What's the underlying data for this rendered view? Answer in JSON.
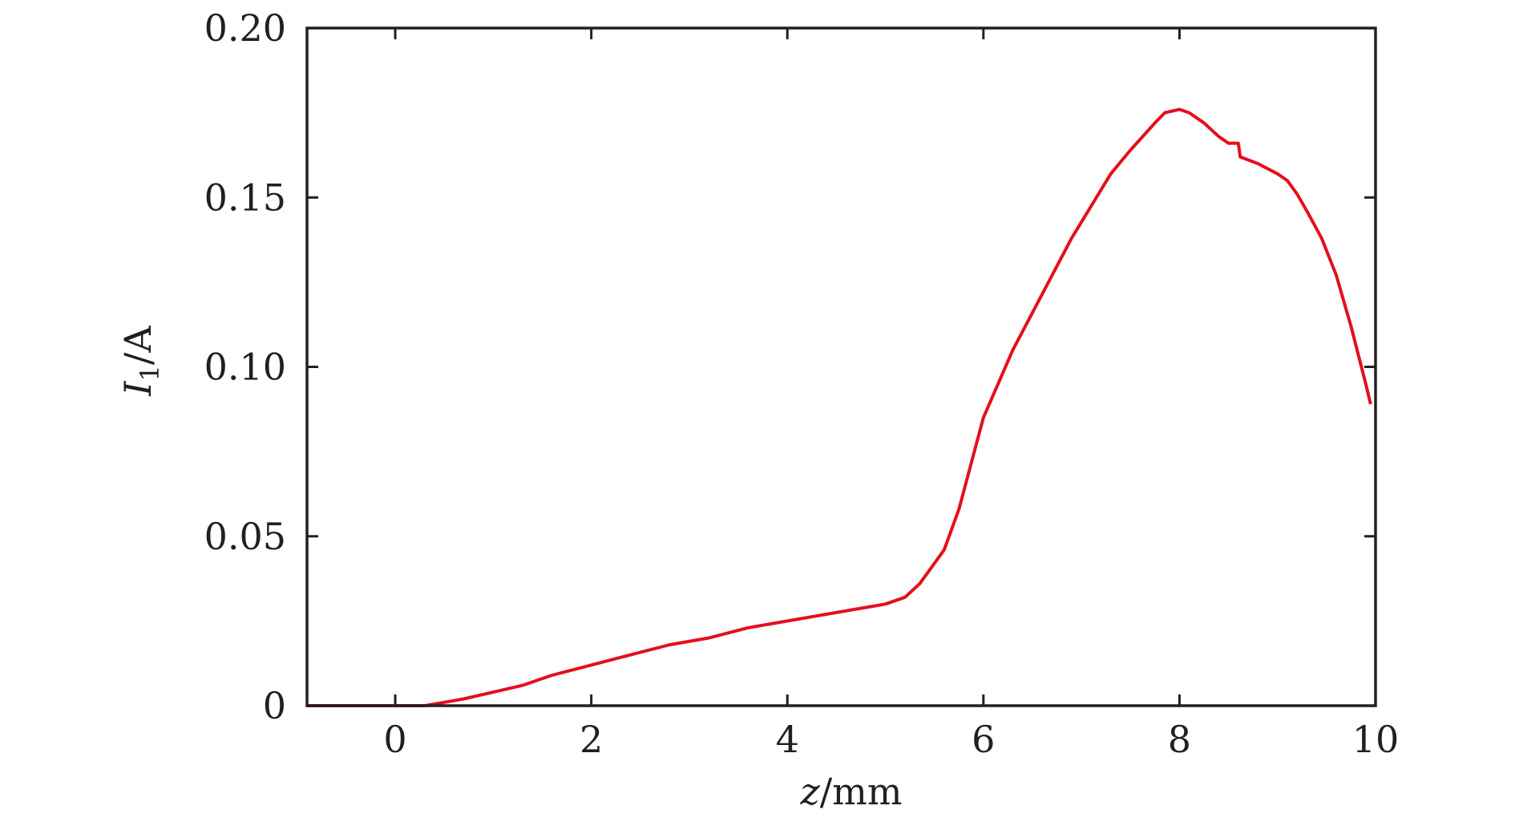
{
  "chart_data": {
    "type": "line",
    "title": "",
    "xlabel": {
      "var": "z",
      "unit": "mm"
    },
    "ylabel": {
      "var": "I",
      "sub": "1",
      "unit": "A"
    },
    "xlim": [
      -0.9,
      10
    ],
    "ylim": [
      0,
      0.2
    ],
    "xticks": [
      0,
      2,
      4,
      6,
      8,
      10
    ],
    "xtick_labels": [
      "0",
      "2",
      "4",
      "6",
      "8",
      "10"
    ],
    "yticks": [
      0,
      0.05,
      0.1,
      0.15,
      0.2
    ],
    "ytick_labels": [
      "0",
      "0.05",
      "0.10",
      "0.15",
      "0.20"
    ],
    "grid": false,
    "legend": "none",
    "line_color": "#e3101b",
    "axis_color": "#231f20",
    "series": [
      {
        "x": [
          -0.9,
          0.0,
          0.3,
          0.5,
          0.7,
          1.0,
          1.3,
          1.6,
          2.0,
          2.4,
          2.8,
          3.2,
          3.6,
          4.0,
          4.4,
          4.8,
          5.0,
          5.2,
          5.35,
          5.5,
          5.6,
          5.75,
          6.0,
          6.3,
          6.5,
          6.9,
          7.3,
          7.5,
          7.75,
          7.85,
          8.0,
          8.1,
          8.25,
          8.4,
          8.5,
          8.6,
          8.62,
          8.8,
          9.0,
          9.1,
          9.2,
          9.3,
          9.45,
          9.6,
          9.75,
          9.9,
          9.95
        ],
        "y": [
          0.0,
          0.0,
          0.0,
          0.001,
          0.002,
          0.004,
          0.006,
          0.009,
          0.012,
          0.015,
          0.018,
          0.02,
          0.023,
          0.025,
          0.027,
          0.029,
          0.03,
          0.032,
          0.036,
          0.042,
          0.046,
          0.058,
          0.085,
          0.105,
          0.116,
          0.138,
          0.157,
          0.164,
          0.172,
          0.175,
          0.176,
          0.175,
          0.172,
          0.168,
          0.166,
          0.166,
          0.162,
          0.16,
          0.157,
          0.155,
          0.151,
          0.146,
          0.138,
          0.127,
          0.112,
          0.095,
          0.089
        ]
      }
    ]
  }
}
